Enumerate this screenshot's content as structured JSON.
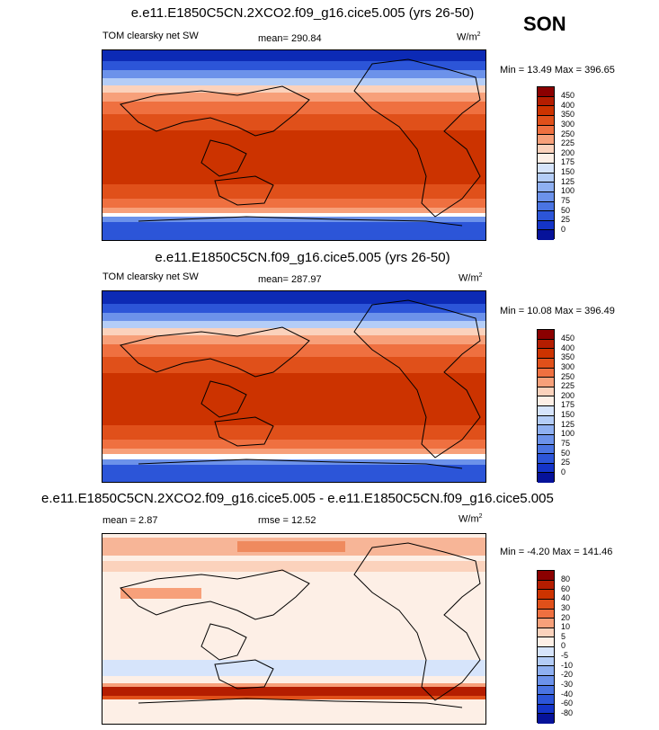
{
  "season": "SON",
  "panels": [
    {
      "title": "e.e11.E1850C5CN.2XCO2.f09_g16.cice5.005 (yrs 26-50)",
      "left": "TOM clearsky net SW",
      "center": "mean= 290.84",
      "units": "W/m",
      "units_sup": "2",
      "minmax": "Min =  13.49 Max = 396.65"
    },
    {
      "title": "e.e11.E1850C5CN.f09_g16.cice5.005 (yrs 26-50)",
      "left": "TOM clearsky net SW",
      "center": "mean= 287.97",
      "units": "W/m",
      "units_sup": "2",
      "minmax": "Min =  10.08 Max = 396.49"
    },
    {
      "title": "e.e11.E1850C5CN.2XCO2.f09_g16.cice5.005 - e.e11.E1850C5CN.f09_g16.cice5.005",
      "left": "mean =  2.87",
      "center": "rmse =  12.52",
      "units": "W/m",
      "units_sup": "2",
      "minmax": "Min =  -4.20 Max = 141.46"
    }
  ],
  "colorbar_abs": {
    "labels": [
      "450",
      "400",
      "350",
      "300",
      "250",
      "225",
      "200",
      "175",
      "150",
      "125",
      "100",
      "75",
      "50",
      "25",
      "0"
    ],
    "colors": [
      "#8b0000",
      "#b41d00",
      "#cc3300",
      "#e0501a",
      "#ef7040",
      "#f7a07a",
      "#fbd2bc",
      "#fdefe6",
      "#d6e4fb",
      "#b4cdf7",
      "#8fb0f1",
      "#6c92ea",
      "#4a74e2",
      "#2c55d8",
      "#1434c8",
      "#06129a"
    ]
  },
  "colorbar_diff": {
    "labels": [
      "80",
      "60",
      "40",
      "30",
      "20",
      "10",
      "5",
      "0",
      "-5",
      "-10",
      "-20",
      "-30",
      "-40",
      "-60",
      "-80"
    ],
    "colors": [
      "#8b0000",
      "#b41d00",
      "#cc3300",
      "#e0501a",
      "#ef7040",
      "#f7a07a",
      "#fbd2bc",
      "#fdefe6",
      "#d6e4fb",
      "#b4cdf7",
      "#8fb0f1",
      "#6c92ea",
      "#4a74e2",
      "#2c55d8",
      "#1434c8",
      "#06129a"
    ]
  }
}
